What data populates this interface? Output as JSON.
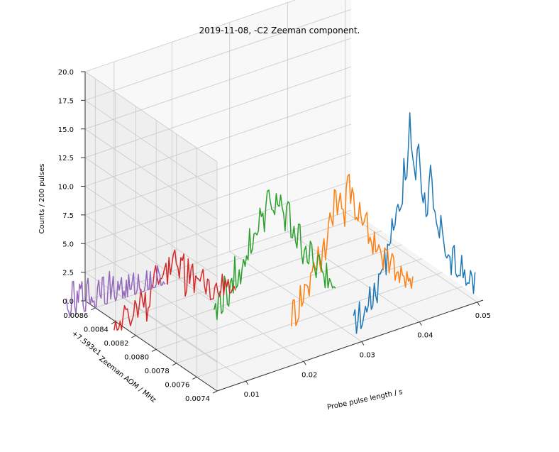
{
  "chart_data": {
    "type": "line3d",
    "title": "2019-11-08, -C2 Zeeman component.",
    "xlabel": "Probe pulse length / s",
    "ylabel": "Zeeman AOM / MHz",
    "zlabel": "Counts / 200 pulses",
    "offset_label": "+7.593e1",
    "xlim": [
      0.005,
      0.051
    ],
    "ylim": [
      0.0074,
      0.0087
    ],
    "zlim": [
      0,
      20
    ],
    "x_ticks": [
      "0.01",
      "0.02",
      "0.03",
      "0.04",
      "0.05"
    ],
    "y_ticks": [
      "0.0074",
      "0.0076",
      "0.0078",
      "0.0080",
      "0.0082",
      "0.0084",
      "0.0086"
    ],
    "z_ticks": [
      "0.0",
      "2.5",
      "5.0",
      "7.5",
      "10.0",
      "12.5",
      "15.0",
      "17.5",
      "20.0"
    ],
    "grid": true,
    "series": [
      {
        "color": "#1f77b4",
        "y": 0.00748,
        "x_start": 0.03,
        "x_end": 0.051,
        "profile": [
          1,
          1,
          2,
          1,
          2,
          3,
          2,
          4,
          3,
          5,
          6,
          5,
          7,
          9,
          8,
          11,
          10,
          13,
          12,
          17,
          14,
          12,
          15,
          11,
          10,
          9,
          12,
          8,
          7,
          6,
          7,
          5,
          4,
          3,
          4,
          2,
          3,
          2,
          1,
          2,
          1,
          1
        ]
      },
      {
        "color": "#ff7f0e",
        "y": 0.00775,
        "x_start": 0.024,
        "x_end": 0.045,
        "profile": [
          1,
          2,
          1,
          3,
          2,
          4,
          3,
          5,
          4,
          6,
          5,
          7,
          6,
          9,
          8,
          11,
          9,
          10,
          8,
          12,
          9,
          10,
          8,
          9,
          7,
          8,
          6,
          5,
          6,
          4,
          5,
          3,
          4,
          2,
          3,
          2,
          1,
          2,
          1,
          1,
          0,
          1
        ]
      },
      {
        "color": "#2ca02c",
        "y": 0.008,
        "x_start": 0.015,
        "x_end": 0.036,
        "profile": [
          2,
          1,
          3,
          2,
          4,
          2,
          3,
          5,
          3,
          4,
          6,
          5,
          7,
          6,
          8,
          7,
          9,
          8,
          10,
          9,
          8,
          10,
          9,
          8,
          7,
          9,
          6,
          7,
          5,
          6,
          4,
          5,
          3,
          4,
          2,
          3,
          2,
          1,
          2,
          1,
          1,
          0
        ]
      },
      {
        "color": "#d62728",
        "y": 0.0083,
        "x_start": 0.003,
        "x_end": 0.024,
        "profile": [
          0,
          1,
          0,
          1,
          2,
          1,
          0,
          2,
          1,
          3,
          2,
          1,
          2,
          3,
          4,
          2,
          3,
          5,
          3,
          4,
          6,
          4,
          3,
          5,
          2,
          4,
          3,
          2,
          3,
          1,
          2,
          1,
          2,
          0,
          1,
          1,
          0,
          1,
          0,
          0,
          1,
          0
        ]
      },
      {
        "color": "#9467bd",
        "y": 0.0086,
        "x_start": 0.0,
        "x_end": 0.017,
        "profile": [
          1,
          0,
          1,
          2,
          0,
          1,
          2,
          1,
          0,
          2,
          1,
          1,
          0,
          2,
          1,
          3,
          1,
          0,
          2,
          1,
          1,
          0,
          1,
          2,
          0,
          1,
          1,
          0,
          1,
          0,
          1,
          0,
          0,
          1,
          0,
          1,
          0,
          0,
          1,
          0,
          0,
          0
        ]
      }
    ]
  }
}
